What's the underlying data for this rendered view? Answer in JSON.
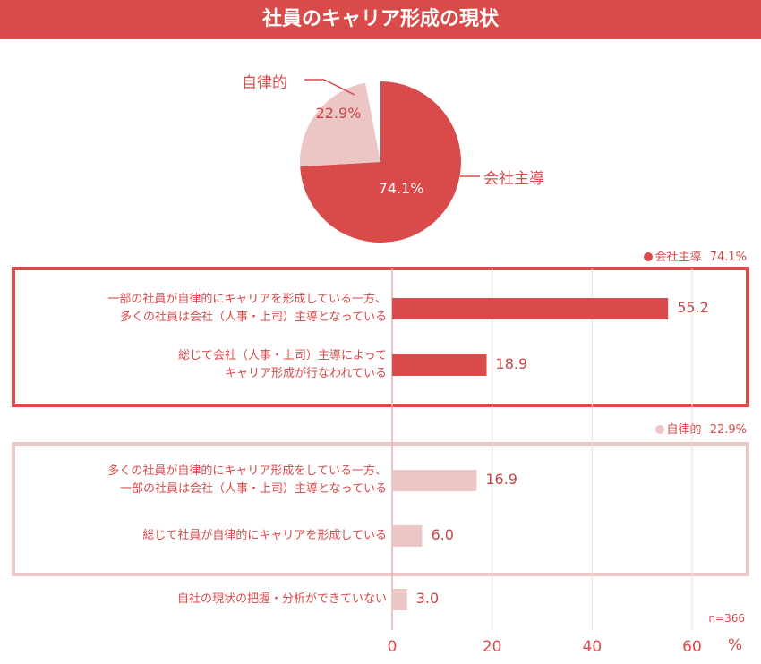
{
  "title": "社員のキャリア形成の現状",
  "pie": {
    "slices": [
      {
        "label": "会社主導",
        "value": 74.1,
        "value_text": "74.1%",
        "color": "#d94a4a"
      },
      {
        "label": "自律的",
        "value": 22.9,
        "value_text": "22.9%",
        "color": "#ecc5c5"
      },
      {
        "label": "",
        "value": 3.0,
        "value_text": "",
        "color": "#ffffff"
      }
    ]
  },
  "legend_company": {
    "label": "会社主導",
    "value": "74.1%",
    "color": "#d94a4a"
  },
  "legend_self": {
    "label": "自律的",
    "value": "22.9%",
    "color": "#ecc5c5"
  },
  "chart_data": {
    "type": "bar",
    "orientation": "horizontal",
    "categories": [
      [
        "一部の社員が自律的にキャリアを形成している一方、",
        "多くの社員は会社（人事・上司）主導となっている"
      ],
      [
        "総じて会社（人事・上司）主導によって",
        "キャリア形成が行なわれている"
      ],
      [
        "多くの社員が自律的にキャリア形成をしている一方、",
        "一部の社員は会社（人事・上司）主導となっている"
      ],
      [
        "総じて社員が自律的にキャリアを形成している"
      ],
      [
        "自社の現状の把握・分析ができていない"
      ]
    ],
    "values": [
      55.2,
      18.9,
      16.9,
      6.0,
      3.0
    ],
    "value_labels": [
      "55.2",
      "18.9",
      "16.9",
      "6.0",
      "3.0"
    ],
    "bar_colors": [
      "#d94a4a",
      "#d94a4a",
      "#ecc5c5",
      "#ecc5c5",
      "#ecc5c5"
    ],
    "x_ticks": [
      "0",
      "20",
      "40",
      "60"
    ],
    "xlim": [
      0,
      70
    ],
    "x_unit": "%",
    "grid": true,
    "note": "n=366"
  }
}
